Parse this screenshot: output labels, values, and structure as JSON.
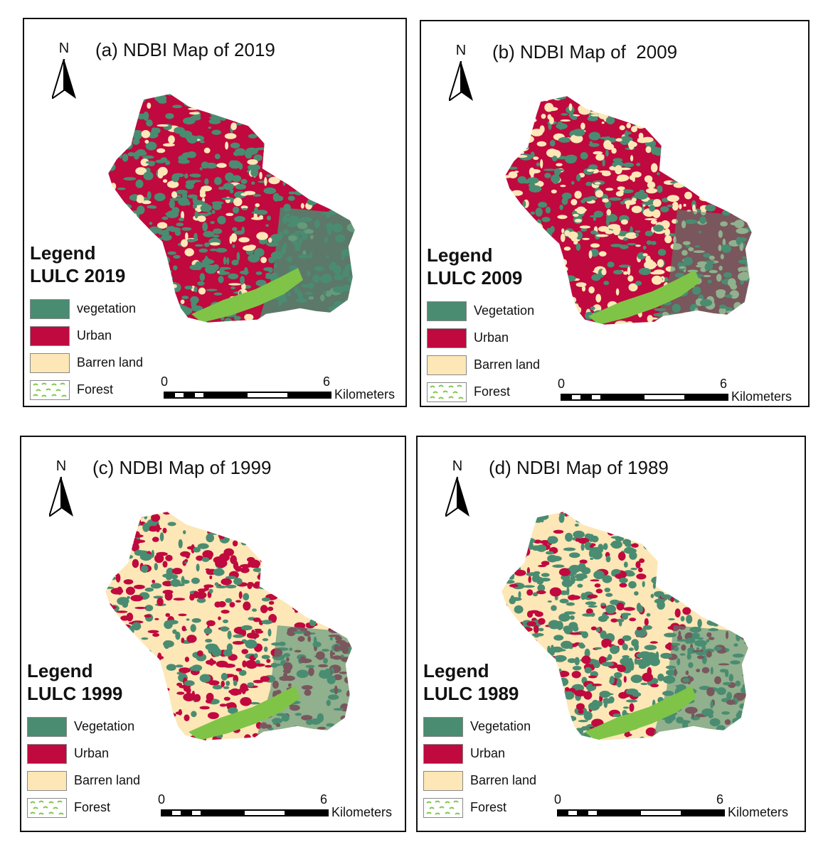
{
  "colors": {
    "vegetation": "#4a8c71",
    "urban": "#c0093e",
    "barren": "#fde7b7",
    "forest": "#7fc447"
  },
  "scale": {
    "start": "0",
    "end": "6",
    "unit": "Kilometers"
  },
  "north_label": "N",
  "panels": [
    {
      "title": "(a) NDBI Map of 2019",
      "legend_title": "Legend",
      "legend_subtitle": "LULC 2019",
      "legend": [
        "vegetation",
        "Urban",
        "Barren land",
        "Forest"
      ]
    },
    {
      "title": "(b) NDBI Map of  2009",
      "legend_title": "Legend",
      "legend_subtitle": "LULC 2009",
      "legend": [
        "Vegetation",
        "Urban",
        "Barren land",
        "Forest"
      ]
    },
    {
      "title": "(c) NDBI Map of 1999",
      "legend_title": "Legend",
      "legend_subtitle": "LULC 1999",
      "legend": [
        "Vegetation",
        "Urban",
        "Barren land",
        "Forest"
      ]
    },
    {
      "title": "(d) NDBI Map of 1989",
      "legend_title": "Legend",
      "legend_subtitle": "LULC 1989",
      "legend": [
        "Vegetation",
        "Urban",
        "Barren land",
        "Forest"
      ]
    }
  ]
}
